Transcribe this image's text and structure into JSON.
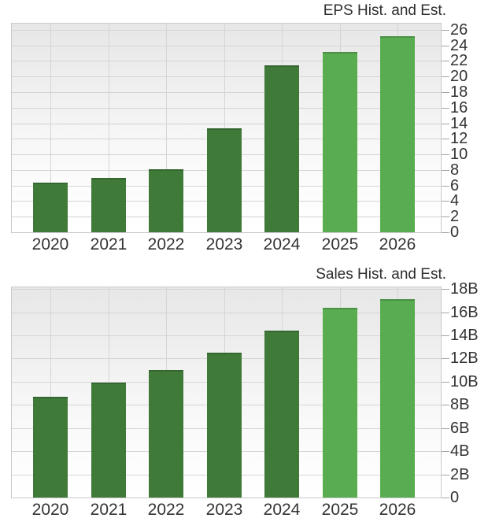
{
  "colors": {
    "historical_bar": "#3F7A39",
    "estimate_bar": "#5AAC51",
    "grid_line": "#d5d5d5",
    "plot_border": "#c9c9c9",
    "axis_text": "#333333",
    "tick_mark": "#a5a5a5"
  },
  "chart_data": [
    {
      "id": "eps",
      "type": "bar",
      "title": "EPS Hist. and Est.",
      "title_position": "top-right",
      "y_axis_side": "right",
      "grid": true,
      "legend": "none",
      "xlabel": "",
      "ylabel": "",
      "categories": [
        "2020",
        "2021",
        "2022",
        "2023",
        "2024",
        "2025",
        "2026"
      ],
      "values": [
        6.4,
        7.0,
        8.1,
        13.3,
        21.4,
        23.2,
        25.2
      ],
      "bar_kind": [
        "historical",
        "historical",
        "historical",
        "historical",
        "historical",
        "estimate",
        "estimate"
      ],
      "ylim": [
        0,
        26.8
      ],
      "y_ticks": [
        {
          "value": 0,
          "label": "0"
        },
        {
          "value": 2,
          "label": "2"
        },
        {
          "value": 4,
          "label": "4"
        },
        {
          "value": 6,
          "label": "6"
        },
        {
          "value": 8,
          "label": "8"
        },
        {
          "value": 10,
          "label": "10"
        },
        {
          "value": 12,
          "label": "12"
        },
        {
          "value": 14,
          "label": "14"
        },
        {
          "value": 16,
          "label": "16"
        },
        {
          "value": 18,
          "label": "18"
        },
        {
          "value": 20,
          "label": "20"
        },
        {
          "value": 22,
          "label": "22"
        },
        {
          "value": 24,
          "label": "24"
        },
        {
          "value": 26,
          "label": "26"
        }
      ]
    },
    {
      "id": "sales",
      "type": "bar",
      "title": "Sales Hist. and Est.",
      "title_position": "top-right",
      "y_axis_side": "right",
      "grid": true,
      "legend": "none",
      "xlabel": "",
      "ylabel": "",
      "categories": [
        "2020",
        "2021",
        "2022",
        "2023",
        "2024",
        "2025",
        "2026"
      ],
      "values": [
        8.7,
        9.9,
        11.0,
        12.5,
        14.4,
        16.4,
        17.1
      ],
      "values_unit": "B",
      "bar_kind": [
        "historical",
        "historical",
        "historical",
        "historical",
        "historical",
        "estimate",
        "estimate"
      ],
      "ylim": [
        0,
        18.15
      ],
      "y_ticks": [
        {
          "value": 0,
          "label": "0"
        },
        {
          "value": 2,
          "label": "2B"
        },
        {
          "value": 4,
          "label": "4B"
        },
        {
          "value": 6,
          "label": "6B"
        },
        {
          "value": 8,
          "label": "8B"
        },
        {
          "value": 10,
          "label": "10B"
        },
        {
          "value": 12,
          "label": "12B"
        },
        {
          "value": 14,
          "label": "14B"
        },
        {
          "value": 16,
          "label": "16B"
        },
        {
          "value": 18,
          "label": "18B"
        }
      ]
    }
  ]
}
